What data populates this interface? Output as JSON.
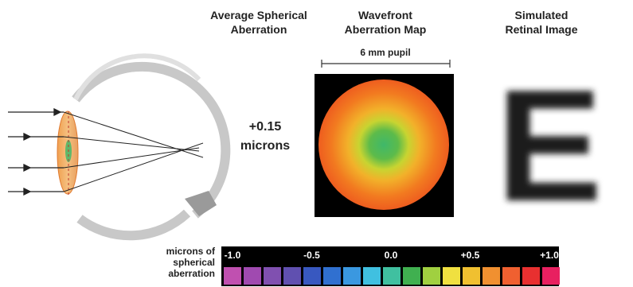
{
  "columns": [
    {
      "title_lines": [
        "Average Spherical",
        "Aberration"
      ]
    },
    {
      "title_lines": [
        "Wavefront",
        "Aberration Map"
      ],
      "caption": "6 mm pupil"
    },
    {
      "title_lines": [
        "Simulated",
        "Retinal Image"
      ]
    }
  ],
  "measurement": {
    "lines": [
      "+0.15",
      "microns"
    ]
  },
  "retinal_letter": "E",
  "scale": {
    "label_lines": [
      "microns of",
      "spherical",
      "aberration"
    ],
    "ticks": [
      "-1.0",
      "-0.5",
      "0.0",
      "+0.5",
      "+1.0"
    ]
  }
}
